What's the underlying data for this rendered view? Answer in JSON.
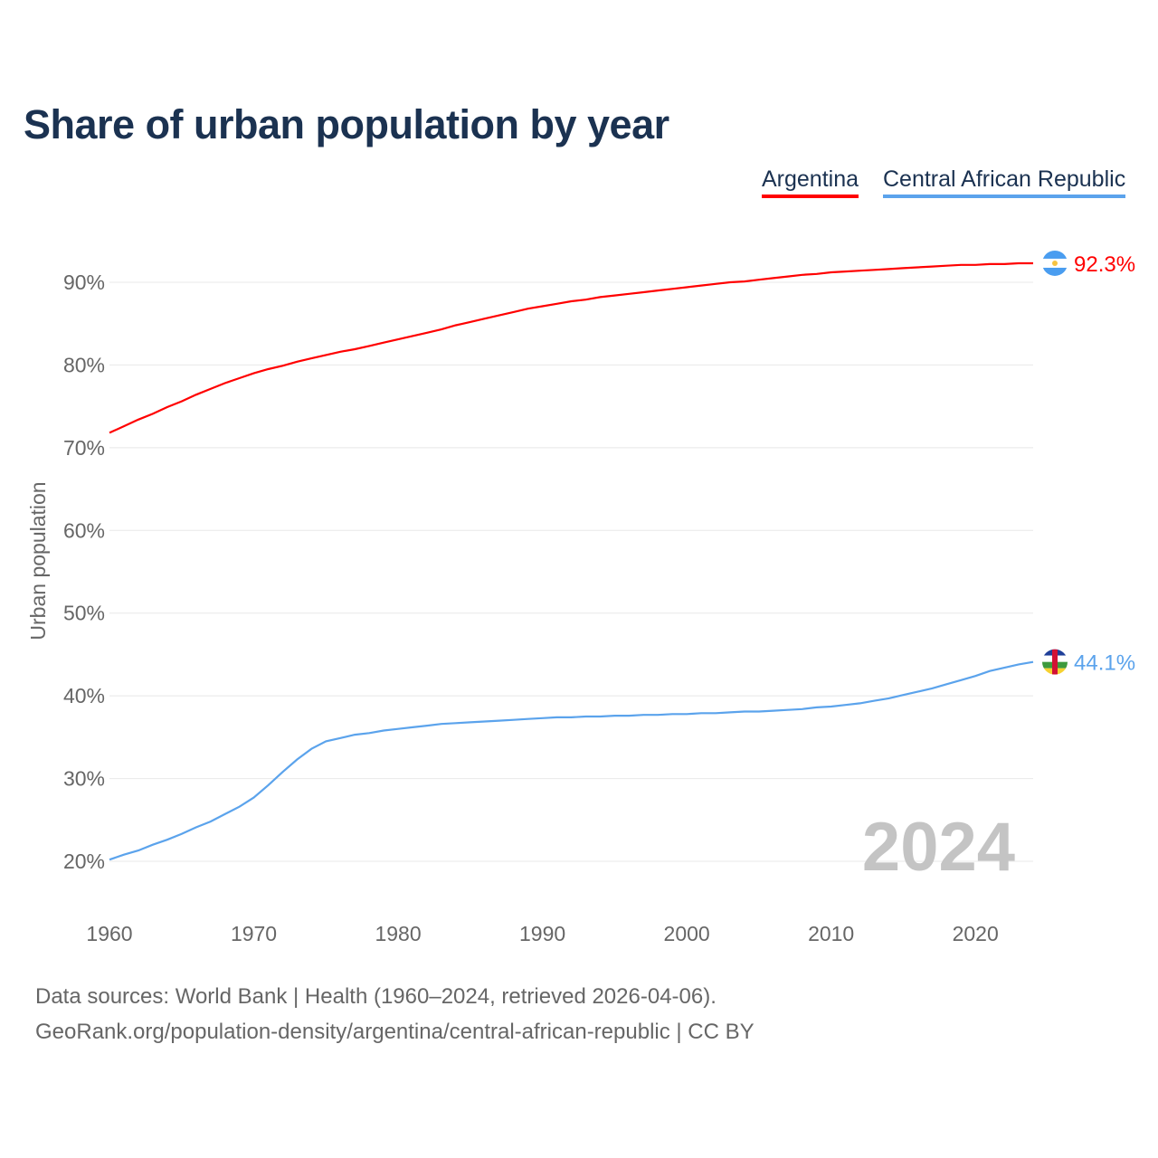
{
  "chart_data": {
    "type": "line",
    "title": "Share of urban population by year",
    "ylabel": "Urban population",
    "xlabel": "",
    "xlim": [
      1960,
      2024
    ],
    "ylim": [
      15,
      96
    ],
    "x_ticks": [
      "1960",
      "1970",
      "1980",
      "1990",
      "2000",
      "2010",
      "2020"
    ],
    "y_ticks": [
      "20%",
      "30%",
      "40%",
      "50%",
      "60%",
      "70%",
      "80%",
      "90%"
    ],
    "y_tick_values": [
      20,
      30,
      40,
      50,
      60,
      70,
      80,
      90
    ],
    "grid": true,
    "legend_placement": "top-right",
    "year_label": "2024",
    "x": [
      1960,
      1961,
      1962,
      1963,
      1964,
      1965,
      1966,
      1967,
      1968,
      1969,
      1970,
      1971,
      1972,
      1973,
      1974,
      1975,
      1976,
      1977,
      1978,
      1979,
      1980,
      1981,
      1982,
      1983,
      1984,
      1985,
      1986,
      1987,
      1988,
      1989,
      1990,
      1991,
      1992,
      1993,
      1994,
      1995,
      1996,
      1997,
      1998,
      1999,
      2000,
      2001,
      2002,
      2003,
      2004,
      2005,
      2006,
      2007,
      2008,
      2009,
      2010,
      2011,
      2012,
      2013,
      2014,
      2015,
      2016,
      2017,
      2018,
      2019,
      2020,
      2021,
      2022,
      2023,
      2024
    ],
    "series": [
      {
        "name": "Argentina",
        "color": "#ff0000",
        "end_label": "92.3%",
        "values": [
          71.8,
          72.6,
          73.4,
          74.1,
          74.9,
          75.6,
          76.4,
          77.1,
          77.8,
          78.4,
          79.0,
          79.5,
          79.9,
          80.4,
          80.8,
          81.2,
          81.6,
          81.9,
          82.3,
          82.7,
          83.1,
          83.5,
          83.9,
          84.3,
          84.8,
          85.2,
          85.6,
          86.0,
          86.4,
          86.8,
          87.1,
          87.4,
          87.7,
          87.9,
          88.2,
          88.4,
          88.6,
          88.8,
          89.0,
          89.2,
          89.4,
          89.6,
          89.8,
          90.0,
          90.1,
          90.3,
          90.5,
          90.7,
          90.9,
          91.0,
          91.2,
          91.3,
          91.4,
          91.5,
          91.6,
          91.7,
          91.8,
          91.9,
          92.0,
          92.1,
          92.1,
          92.2,
          92.2,
          92.3,
          92.3
        ]
      },
      {
        "name": "Central African Republic",
        "color": "#5ba3ec",
        "end_label": "44.1%",
        "values": [
          20.2,
          20.8,
          21.3,
          22.0,
          22.6,
          23.3,
          24.1,
          24.8,
          25.7,
          26.6,
          27.7,
          29.2,
          30.8,
          32.3,
          33.6,
          34.5,
          34.9,
          35.3,
          35.5,
          35.8,
          36.0,
          36.2,
          36.4,
          36.6,
          36.7,
          36.8,
          36.9,
          37.0,
          37.1,
          37.2,
          37.3,
          37.4,
          37.4,
          37.5,
          37.5,
          37.6,
          37.6,
          37.7,
          37.7,
          37.8,
          37.8,
          37.9,
          37.9,
          38.0,
          38.1,
          38.1,
          38.2,
          38.3,
          38.4,
          38.6,
          38.7,
          38.9,
          39.1,
          39.4,
          39.7,
          40.1,
          40.5,
          40.9,
          41.4,
          41.9,
          42.4,
          43.0,
          43.4,
          43.8,
          44.1
        ]
      }
    ]
  },
  "footer": {
    "line1": "Data sources: World Bank | Health (1960–2024, retrieved 2026-04-06).",
    "line2": "GeoRank.org/population-density/argentina/central-african-republic | CC BY"
  }
}
